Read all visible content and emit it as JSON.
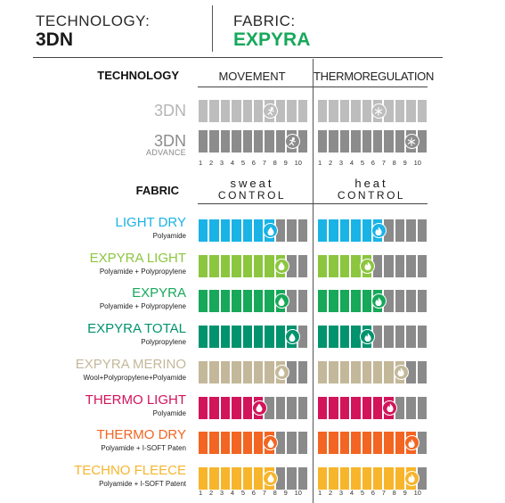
{
  "header": {
    "technology_label": "TECHNOLOGY:",
    "technology_value": "3DN",
    "fabric_label": "FABRIC:",
    "fabric_value": "EXPYRA",
    "fabric_color": "#17a85a"
  },
  "columns": {
    "technology_heading": "TECHNOLOGY",
    "movement": "MOVEMENT",
    "thermo": "THERMOREGULATION",
    "fabric_heading": "FABRIC",
    "sweat_top": "sweat",
    "sweat_bottom": "CONTROL",
    "heat_top": "heat",
    "heat_bottom": "CONTROL"
  },
  "axis_ticks": [
    "1",
    "2",
    "3",
    "4",
    "5",
    "6",
    "7",
    "8",
    "9",
    "10"
  ],
  "technologies": [
    {
      "name": "3DN",
      "sub": "",
      "color": "#bdbdbd",
      "movement": 7,
      "thermo": 6,
      "movement_icon": "movement-icon",
      "thermo_icon": "snowflake-icon"
    },
    {
      "name": "3DN",
      "sub": "ADVANCE",
      "color": "#8c8c8c",
      "movement": 9,
      "thermo": 9,
      "movement_icon": "movement-icon",
      "thermo_icon": "snowflake-icon"
    }
  ],
  "fabrics": [
    {
      "name": "LIGHT DRY",
      "sub": "Polyamide",
      "color": "#1ab3e6",
      "sweat": 7,
      "heat": 6
    },
    {
      "name": "EXPYRA LIGHT",
      "sub": "Polyamide + Polypropylene",
      "color": "#8cc63f",
      "sweat": 8,
      "heat": 5
    },
    {
      "name": "EXPYRA",
      "sub": "Polyamide + Polypropylene",
      "color": "#17a85a",
      "sweat": 8,
      "heat": 6
    },
    {
      "name": "EXPYRA TOTAL",
      "sub": "Polypropylene",
      "color": "#00936e",
      "sweat": 9,
      "heat": 5
    },
    {
      "name": "EXPYRA MERINO",
      "sub": "Wool+Polypropylene+Polyamide",
      "color": "#c4b89a",
      "sweat": 8,
      "heat": 8
    },
    {
      "name": "THERMO LIGHT",
      "sub": "Polyamide",
      "color": "#d2145a",
      "sweat": 6,
      "heat": 7
    },
    {
      "name": "THERMO DRY",
      "sub": "Polyamide + I-SOFT Paten",
      "color": "#f26522",
      "sweat": 7,
      "heat": 9
    },
    {
      "name": "TECHNO FLEECE",
      "sub": "Polyamide + I-SOFT Patent",
      "color": "#f7b52c",
      "sweat": 7,
      "heat": 9
    }
  ]
}
